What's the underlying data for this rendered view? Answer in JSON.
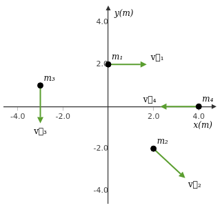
{
  "chart_data": {
    "type": "scatter",
    "xlabel": "x(m)",
    "ylabel": "y(m)",
    "xlim": [
      -4.6,
      4.6
    ],
    "ylim": [
      -4.6,
      4.6
    ],
    "xticks": [
      {
        "value": -4.0,
        "label": "-4.0"
      },
      {
        "value": -2.0,
        "label": "-2.0"
      },
      {
        "value": 2.0,
        "label": "2.0"
      },
      {
        "value": 4.0,
        "label": "4.0"
      }
    ],
    "yticks": [
      {
        "value": -4.0,
        "label": "-4.0"
      },
      {
        "value": -2.0,
        "label": "-2.0"
      },
      {
        "value": 2.0,
        "label": "2.0"
      },
      {
        "value": 4.0,
        "label": "4.0"
      }
    ],
    "grid": false,
    "series": [
      {
        "type": "scatter",
        "color": "black",
        "x": [
          0.0,
          2.0,
          -3.0,
          4.0
        ],
        "values": [
          2.0,
          -2.0,
          1.0,
          0.0
        ],
        "point_labels": [
          "m₁",
          "m₂",
          "m₃",
          "m₄"
        ]
      },
      {
        "type": "vector",
        "color": "#5a9e2f",
        "x": [
          0.0,
          2.0,
          -3.0,
          4.0
        ],
        "values": [
          2.0,
          -2.0,
          1.0,
          0.0
        ],
        "dx": [
          1.7,
          1.4,
          0.0,
          -1.7
        ],
        "dy": [
          0.0,
          -1.4,
          -1.8,
          0.0
        ],
        "labels": [
          "v⃗₁",
          "v⃗₂",
          "v⃗₃",
          "v⃗₄"
        ]
      }
    ]
  }
}
